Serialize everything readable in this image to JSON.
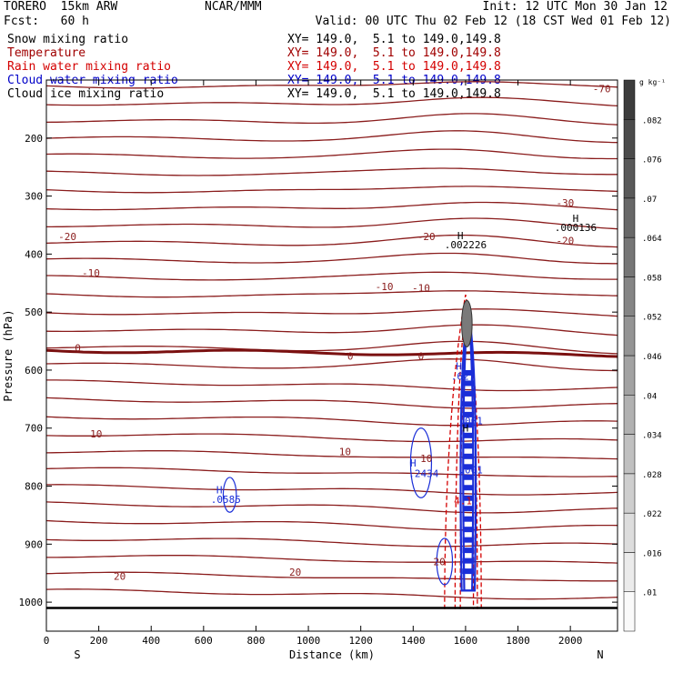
{
  "header": {
    "model": "TORERO  15km ARW",
    "center": "NCAR/MMM",
    "init": "Init: 12 UTC Mon 30 Jan 12",
    "fcst": "Fcst:   60 h",
    "valid": "Valid: 00 UTC Thu 02 Feb 12 (18 CST Wed 01 Feb 12)"
  },
  "legend": [
    {
      "label": "Snow mixing ratio",
      "xy": "XY= 149.0,  5.1 to 149.0,149.8",
      "color": "#000000"
    },
    {
      "label": "Temperature",
      "xy": "XY= 149.0,  5.1 to 149.0,149.8",
      "color": "#a00000"
    },
    {
      "label": "Rain water mixing ratio",
      "xy": "XY= 149.0,  5.1 to 149.0,149.8",
      "color": "#d40000"
    },
    {
      "label": "Cloud water mixing ratio",
      "xy": "XY= 149.0,  5.1 to 149.0,149.8",
      "color": "#0000c8"
    },
    {
      "label": "Cloud ice mixing ratio",
      "xy": "XY= 149.0,  5.1 to 149.0,149.8",
      "color": "#000000"
    }
  ],
  "chart_data": {
    "type": "contour",
    "xlabel": "Distance (km)",
    "ylabel": "Pressure (hPa)",
    "xlim": [
      0,
      2180
    ],
    "ylim": [
      1050,
      100
    ],
    "xticks": [
      0,
      200,
      400,
      600,
      800,
      1000,
      1200,
      1400,
      1600,
      1800,
      2000
    ],
    "yticks": [
      200,
      300,
      400,
      500,
      600,
      700,
      800,
      900,
      1000
    ],
    "x_end_labels": {
      "left": "S",
      "right": "N"
    },
    "colorbar": {
      "unit": "g kg⁻¹",
      "ticks": [
        ".01",
        ".016",
        ".022",
        ".028",
        ".034",
        ".04",
        ".046",
        ".052",
        ".058",
        ".064",
        ".07",
        ".076",
        ".082"
      ]
    },
    "temperature_contours": [
      {
        "label": "-70",
        "label_x": 2120,
        "label_p": 115
      },
      {
        "label": "-30",
        "label_x": 1980,
        "label_p": 312
      },
      {
        "label": "-20",
        "label_x": 80,
        "label_p": 370
      },
      {
        "label": "-20",
        "label_x": 1450,
        "label_p": 370
      },
      {
        "label": "-20",
        "label_x": 1980,
        "label_p": 377
      },
      {
        "label": "-10",
        "label_x": 170,
        "label_p": 432
      },
      {
        "label": "-10",
        "label_x": 1290,
        "label_p": 456
      },
      {
        "label": "-10",
        "label_x": 1430,
        "label_p": 458
      },
      {
        "label": "0",
        "label_x": 120,
        "label_p": 562
      },
      {
        "label": "0",
        "label_x": 1160,
        "label_p": 576
      },
      {
        "label": "0",
        "label_x": 1430,
        "label_p": 576
      },
      {
        "label": "10",
        "label_x": 190,
        "label_p": 710
      },
      {
        "label": "10",
        "label_x": 1140,
        "label_p": 740
      },
      {
        "label": "10",
        "label_x": 1450,
        "label_p": 752
      },
      {
        "label": "20",
        "label_x": 280,
        "label_p": 955
      },
      {
        "label": "20",
        "label_x": 950,
        "label_p": 948
      },
      {
        "label": "20",
        "label_x": 1500,
        "label_p": 930
      }
    ],
    "annotations": [
      {
        "text": "H",
        "x": 1600,
        "p": 700,
        "series": "cloud_ice"
      },
      {
        "text": "H",
        "x": 1580,
        "p": 368,
        "series": "snow"
      },
      {
        "text": ".002226",
        "x": 1600,
        "p": 384,
        "series": "snow"
      },
      {
        "text": "H",
        "x": 2020,
        "p": 338,
        "series": "snow"
      },
      {
        "text": ".000136",
        "x": 2020,
        "p": 354,
        "series": "snow"
      },
      {
        "text": "H",
        "x": 1575,
        "p": 593,
        "series": "cloud_water"
      },
      {
        "text": ".627",
        "x": 1590,
        "p": 610,
        "series": "cloud_water"
      },
      {
        "text": ".001",
        "x": 1620,
        "p": 687,
        "series": "cloud_water"
      },
      {
        "text": ".001",
        "x": 1620,
        "p": 772,
        "series": "cloud_water"
      },
      {
        "text": "H",
        "x": 1400,
        "p": 760,
        "series": "cloud_water"
      },
      {
        "text": ".2434",
        "x": 1440,
        "p": 778,
        "series": "cloud_water"
      },
      {
        "text": "H",
        "x": 660,
        "p": 806,
        "series": "cloud_water"
      },
      {
        "text": ".0585",
        "x": 685,
        "p": 823,
        "series": "cloud_water"
      },
      {
        "text": "4.1",
        "x": 1590,
        "p": 825,
        "series": "rain"
      }
    ]
  }
}
